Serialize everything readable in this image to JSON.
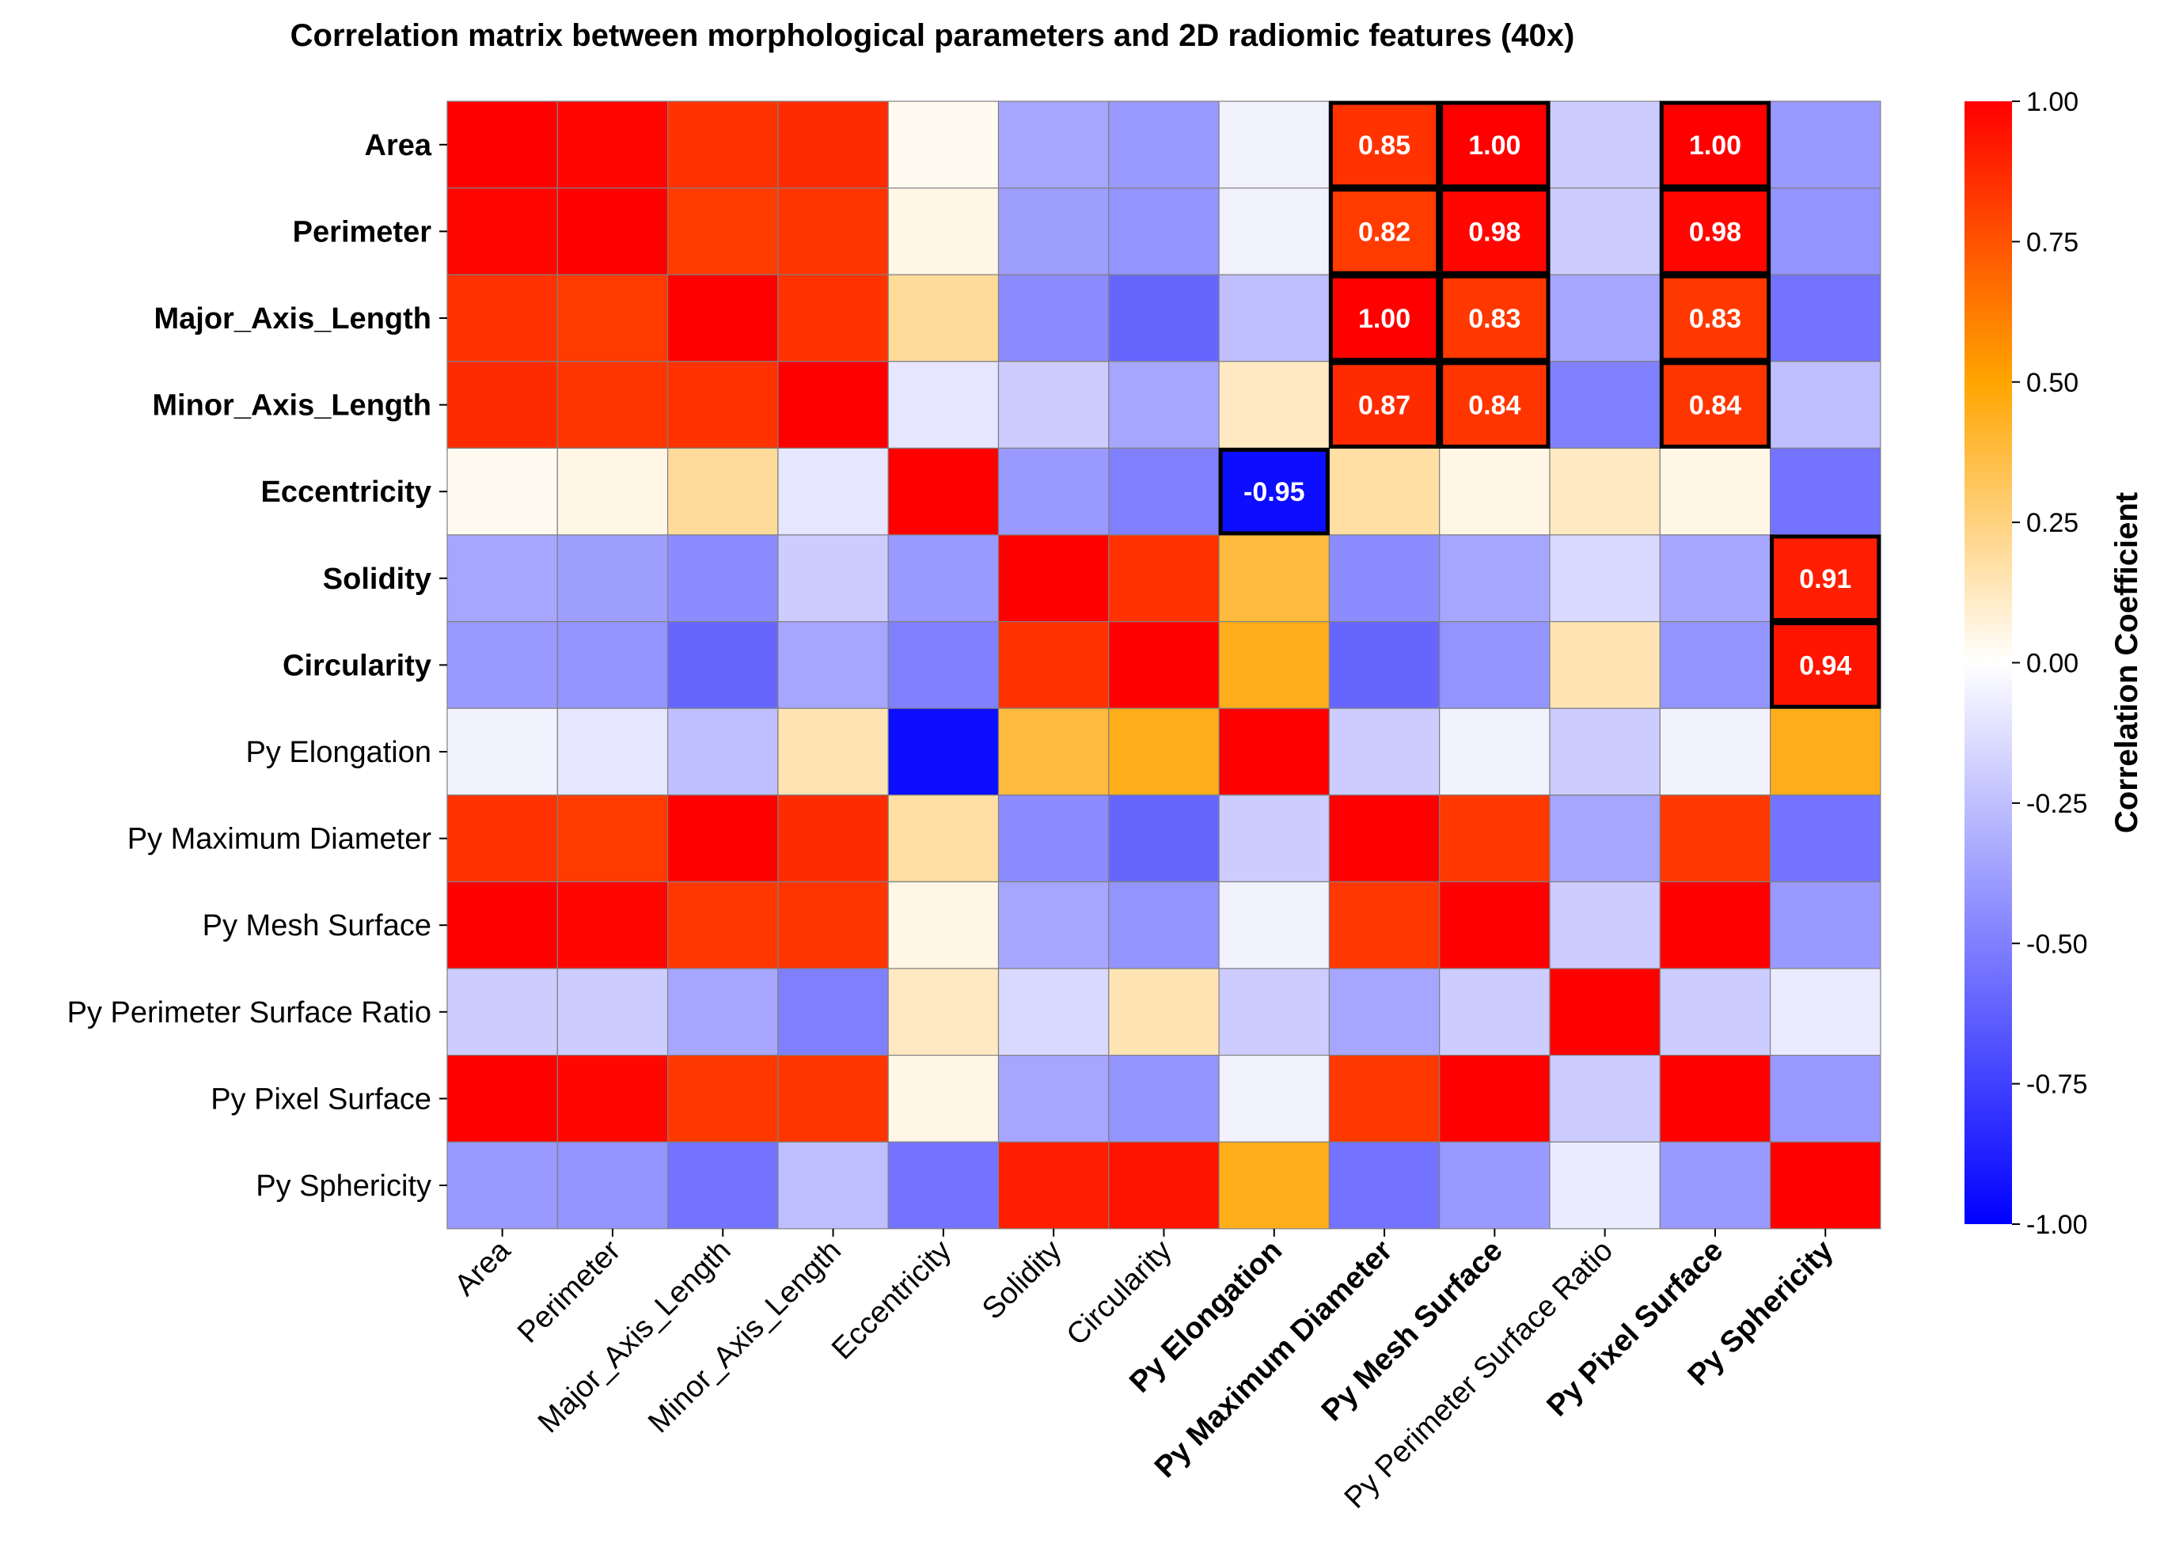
{
  "chart_data": {
    "type": "heatmap",
    "title": "Correlation matrix between morphological parameters and 2D radiomic features (40x)",
    "row_labels": [
      "Area",
      "Perimeter",
      "Major_Axis_Length",
      "Minor_Axis_Length",
      "Eccentricity",
      "Solidity",
      "Circularity",
      "Py Elongation",
      "Py Maximum Diameter",
      "Py Mesh Surface",
      "Py Perimeter Surface Ratio",
      "Py Pixel Surface",
      "Py Sphericity"
    ],
    "col_labels": [
      "Area",
      "Perimeter",
      "Major_Axis_Length",
      "Minor_Axis_Length",
      "Eccentricity",
      "Solidity",
      "Circularity",
      "Py Elongation",
      "Py Maximum Diameter",
      "Py Mesh Surface",
      "Py Perimeter Surface Ratio",
      "Py Pixel Surface",
      "Py Sphericity"
    ],
    "row_label_colors": [
      "#e8191b",
      "#e8191b",
      "#e8191b",
      "#e8191b",
      "#1414e6",
      "#e8191b",
      "#e8191b",
      "#000000",
      "#000000",
      "#000000",
      "#000000",
      "#000000",
      "#000000"
    ],
    "col_label_colors": [
      "#000000",
      "#000000",
      "#000000",
      "#000000",
      "#000000",
      "#000000",
      "#000000",
      "#1414e6",
      "#e8191b",
      "#e8191b",
      "#000000",
      "#e8191b",
      "#e8191b"
    ],
    "values": [
      [
        1.0,
        0.98,
        0.85,
        0.87,
        0.03,
        -0.35,
        -0.4,
        -0.05,
        0.85,
        1.0,
        -0.2,
        1.0,
        -0.4
      ],
      [
        0.98,
        1.0,
        0.82,
        0.84,
        0.05,
        -0.38,
        -0.42,
        -0.05,
        0.82,
        0.98,
        -0.2,
        0.98,
        -0.42
      ],
      [
        0.85,
        0.82,
        1.0,
        0.85,
        0.2,
        -0.45,
        -0.6,
        -0.25,
        1.0,
        0.83,
        -0.35,
        0.83,
        -0.55
      ],
      [
        0.87,
        0.84,
        0.85,
        1.0,
        -0.1,
        -0.2,
        -0.35,
        0.12,
        0.87,
        0.84,
        -0.5,
        0.84,
        -0.25
      ],
      [
        0.03,
        0.05,
        0.2,
        -0.1,
        1.0,
        -0.4,
        -0.5,
        -0.95,
        0.18,
        0.05,
        0.12,
        0.05,
        -0.55
      ],
      [
        -0.35,
        -0.38,
        -0.45,
        -0.2,
        -0.4,
        1.0,
        0.85,
        0.38,
        -0.45,
        -0.35,
        -0.15,
        -0.35,
        0.91
      ],
      [
        -0.4,
        -0.42,
        -0.6,
        -0.35,
        -0.5,
        0.85,
        1.0,
        0.45,
        -0.6,
        -0.42,
        0.15,
        -0.42,
        0.94
      ],
      [
        -0.05,
        -0.1,
        -0.25,
        0.15,
        -0.95,
        0.38,
        0.45,
        1.0,
        -0.2,
        -0.05,
        -0.2,
        -0.05,
        0.45
      ],
      [
        0.85,
        0.82,
        1.0,
        0.87,
        0.18,
        -0.45,
        -0.6,
        -0.2,
        1.0,
        0.83,
        -0.35,
        0.83,
        -0.55
      ],
      [
        1.0,
        0.98,
        0.83,
        0.84,
        0.05,
        -0.35,
        -0.42,
        -0.05,
        0.83,
        1.0,
        -0.2,
        1.0,
        -0.4
      ],
      [
        -0.2,
        -0.2,
        -0.35,
        -0.5,
        0.12,
        -0.15,
        0.15,
        -0.2,
        -0.35,
        -0.2,
        1.0,
        -0.2,
        -0.08
      ],
      [
        1.0,
        0.98,
        0.83,
        0.84,
        0.05,
        -0.35,
        -0.42,
        -0.05,
        0.83,
        1.0,
        -0.2,
        1.0,
        -0.4
      ],
      [
        -0.4,
        -0.42,
        -0.55,
        -0.25,
        -0.55,
        0.91,
        0.94,
        0.45,
        -0.55,
        -0.4,
        -0.08,
        -0.4,
        1.0
      ]
    ],
    "annotations": [
      {
        "row": 0,
        "col": 8,
        "text": "0.85"
      },
      {
        "row": 0,
        "col": 9,
        "text": "1.00"
      },
      {
        "row": 0,
        "col": 11,
        "text": "1.00"
      },
      {
        "row": 1,
        "col": 8,
        "text": "0.82"
      },
      {
        "row": 1,
        "col": 9,
        "text": "0.98"
      },
      {
        "row": 1,
        "col": 11,
        "text": "0.98"
      },
      {
        "row": 2,
        "col": 8,
        "text": "1.00"
      },
      {
        "row": 2,
        "col": 9,
        "text": "0.83"
      },
      {
        "row": 2,
        "col": 11,
        "text": "0.83"
      },
      {
        "row": 3,
        "col": 8,
        "text": "0.87"
      },
      {
        "row": 3,
        "col": 9,
        "text": "0.84"
      },
      {
        "row": 3,
        "col": 11,
        "text": "0.84"
      },
      {
        "row": 4,
        "col": 7,
        "text": "-0.95"
      },
      {
        "row": 5,
        "col": 12,
        "text": "0.91"
      },
      {
        "row": 6,
        "col": 12,
        "text": "0.94"
      }
    ],
    "colorbar": {
      "label": "Correlation Coefficient",
      "range": [
        -1.0,
        1.0
      ],
      "ticks": [
        "1.00",
        "0.75",
        "0.50",
        "0.25",
        "0.00",
        "-0.25",
        "-0.50",
        "-0.75",
        "-1.00"
      ],
      "tick_values": [
        1.0,
        0.75,
        0.5,
        0.25,
        0.0,
        -0.25,
        -0.5,
        -0.75,
        -1.0
      ],
      "colors": [
        "#0000ff",
        "#ffffff",
        "#ffa500",
        "#ff0000"
      ],
      "color_stops": [
        -1.0,
        0.0,
        0.5,
        1.0
      ]
    }
  }
}
